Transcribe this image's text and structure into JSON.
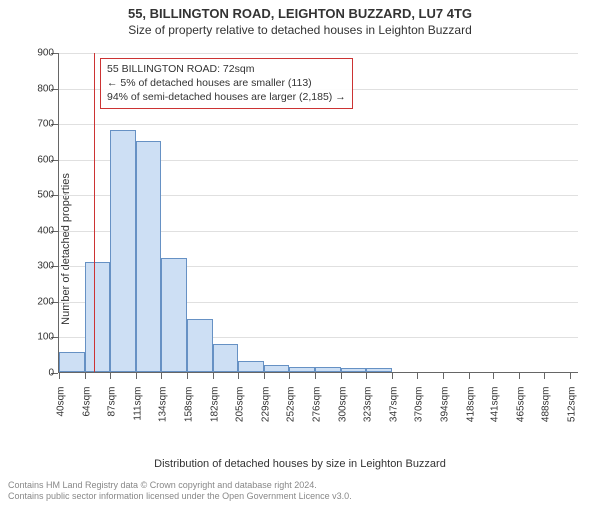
{
  "title_main": "55, BILLINGTON ROAD, LEIGHTON BUZZARD, LU7 4TG",
  "title_sub": "Size of property relative to detached houses in Leighton Buzzard",
  "y_axis_title": "Number of detached properties",
  "x_axis_title": "Distribution of detached houses by size in Leighton Buzzard",
  "annotation": {
    "line1": "55 BILLINGTON ROAD: 72sqm",
    "line2": "← 5% of detached houses are smaller (113)",
    "line3": "94% of semi-detached houses are larger (2,185) →"
  },
  "chart": {
    "type": "histogram",
    "ylim": [
      0,
      900
    ],
    "ytick_step": 100,
    "xlim_sqm": [
      40,
      520
    ],
    "x_ticks": [
      40,
      64,
      87,
      111,
      134,
      158,
      182,
      205,
      229,
      252,
      276,
      300,
      323,
      347,
      370,
      394,
      418,
      441,
      465,
      488,
      512
    ],
    "x_label_suffix": "sqm",
    "bar_color": "#cddff4",
    "bar_border_color": "#6691c4",
    "background_color": "#ffffff",
    "grid_color": "#e0e0e0",
    "axis_color": "#666666",
    "marker_color": "#cc3333",
    "marker_value_sqm": 72,
    "bars": [
      {
        "x0": 40,
        "x1": 64,
        "count": 56
      },
      {
        "x0": 64,
        "x1": 87,
        "count": 310
      },
      {
        "x0": 87,
        "x1": 111,
        "count": 680
      },
      {
        "x0": 111,
        "x1": 134,
        "count": 650
      },
      {
        "x0": 134,
        "x1": 158,
        "count": 320
      },
      {
        "x0": 158,
        "x1": 182,
        "count": 150
      },
      {
        "x0": 182,
        "x1": 205,
        "count": 80
      },
      {
        "x0": 205,
        "x1": 229,
        "count": 30
      },
      {
        "x0": 229,
        "x1": 252,
        "count": 20
      },
      {
        "x0": 252,
        "x1": 276,
        "count": 15
      },
      {
        "x0": 276,
        "x1": 300,
        "count": 15
      },
      {
        "x0": 300,
        "x1": 323,
        "count": 12
      },
      {
        "x0": 323,
        "x1": 347,
        "count": 10
      },
      {
        "x0": 347,
        "x1": 370,
        "count": 0
      },
      {
        "x0": 370,
        "x1": 394,
        "count": 0
      },
      {
        "x0": 394,
        "x1": 418,
        "count": 0
      },
      {
        "x0": 418,
        "x1": 441,
        "count": 0
      },
      {
        "x0": 441,
        "x1": 465,
        "count": 0
      },
      {
        "x0": 465,
        "x1": 488,
        "count": 0
      },
      {
        "x0": 488,
        "x1": 512,
        "count": 0
      }
    ]
  },
  "attribution": {
    "line1": "Contains HM Land Registry data © Crown copyright and database right 2024.",
    "line2": "Contains public sector information licensed under the Open Government Licence v3.0."
  }
}
